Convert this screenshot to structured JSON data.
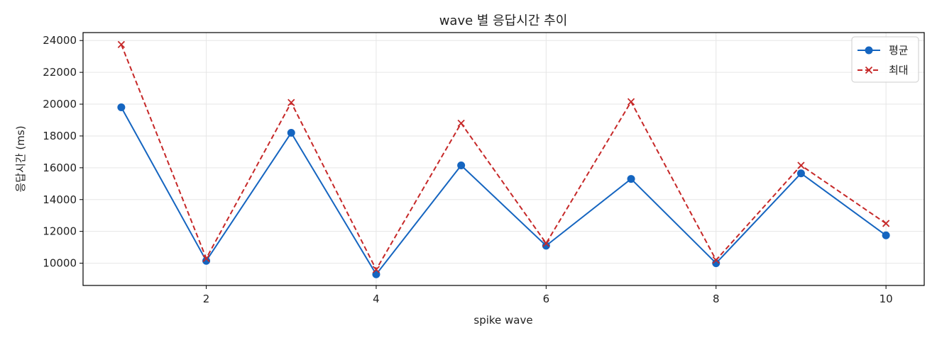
{
  "chart_data": {
    "type": "line",
    "title": "wave 별 응답시간 추이",
    "xlabel": "spike wave",
    "ylabel": "응답시간 (ms)",
    "x": [
      1,
      2,
      3,
      4,
      5,
      6,
      7,
      8,
      9,
      10
    ],
    "xlim": [
      0.55,
      10.45
    ],
    "ylim": [
      8600,
      24500
    ],
    "xticks": [
      2,
      4,
      6,
      8,
      10
    ],
    "yticks": [
      10000,
      12000,
      14000,
      16000,
      18000,
      20000,
      22000,
      24000
    ],
    "grid": true,
    "legend_position": "top-right",
    "series": [
      {
        "name": "평균",
        "color": "#1565C0",
        "marker": "circle",
        "linestyle": "solid",
        "values": [
          19800,
          10150,
          18200,
          9300,
          16150,
          11100,
          15300,
          10000,
          15650,
          11750
        ]
      },
      {
        "name": "최대",
        "color": "#C62828",
        "marker": "x",
        "linestyle": "dashed",
        "values": [
          23750,
          10300,
          20100,
          9600,
          18800,
          11250,
          20150,
          10200,
          16150,
          12500
        ]
      }
    ]
  }
}
